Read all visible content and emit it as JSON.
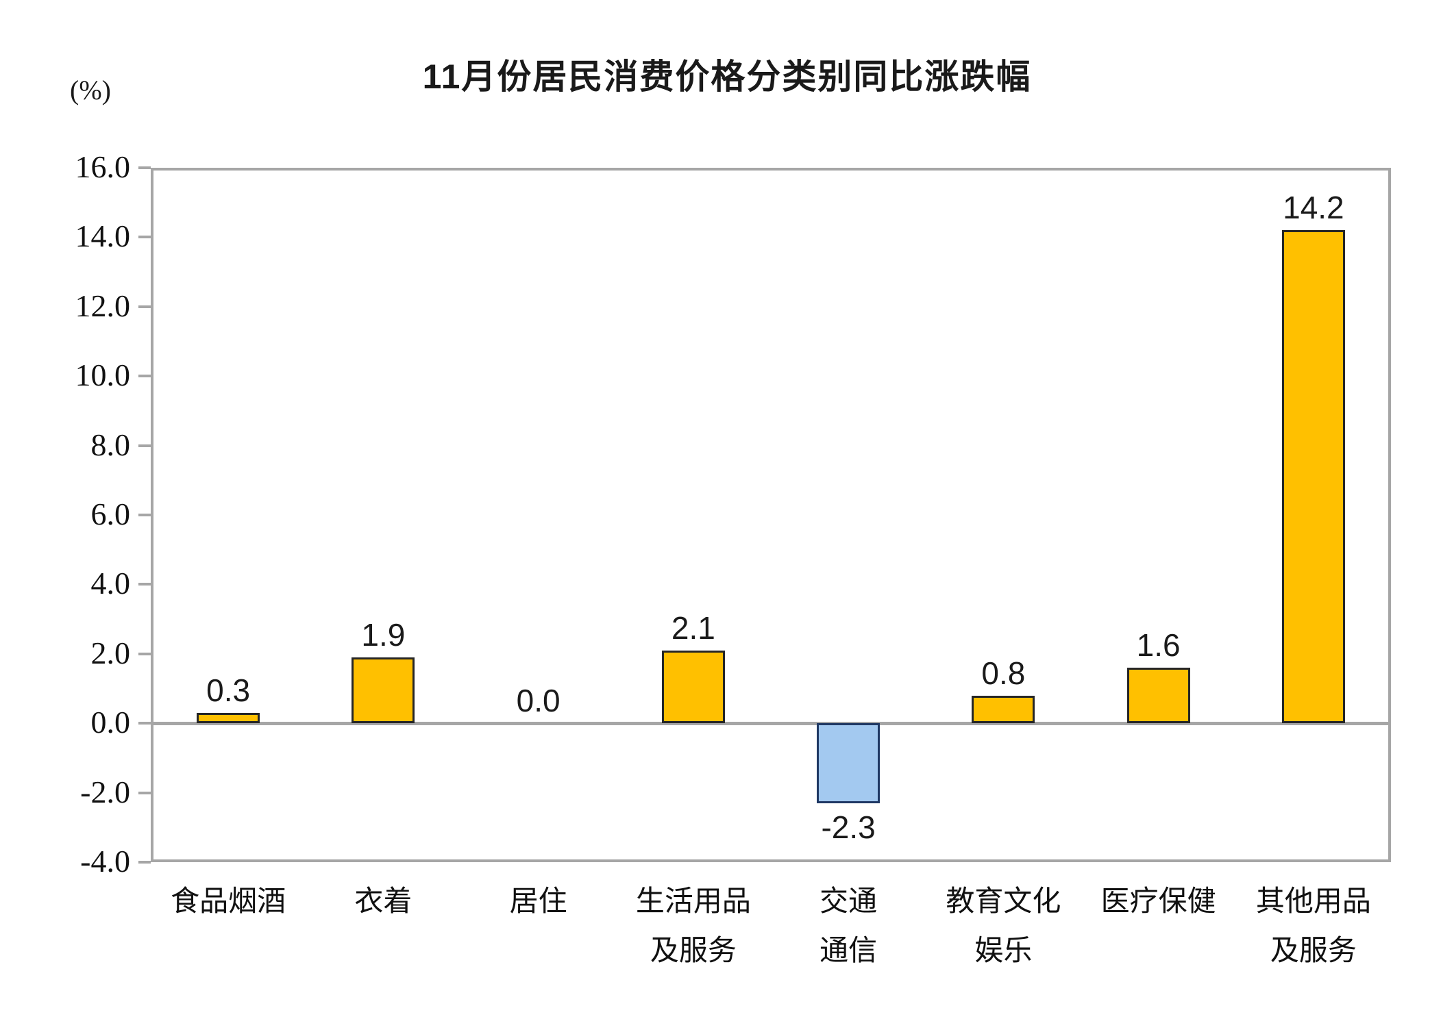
{
  "chart": {
    "title": "11月份居民消费价格分类别同比涨跌幅",
    "unit_label": "(%)"
  },
  "chart_data": {
    "type": "bar",
    "title": "11月份居民消费价格分类别同比涨跌幅",
    "xlabel": "",
    "ylabel": "(%)",
    "categories": [
      "食品烟酒",
      "衣着",
      "居住",
      "生活用品及服务",
      "交通通信",
      "教育文化娱乐",
      "医疗保健",
      "其他用品及服务"
    ],
    "category_lines": [
      [
        "食品烟酒"
      ],
      [
        "衣着"
      ],
      [
        "居住"
      ],
      [
        "生活用品",
        "及服务"
      ],
      [
        "交通",
        "通信"
      ],
      [
        "教育文化",
        "娱乐"
      ],
      [
        "医疗保健"
      ],
      [
        "其他用品",
        "及服务"
      ]
    ],
    "values": [
      0.3,
      1.9,
      0.0,
      2.1,
      -2.3,
      0.8,
      1.6,
      14.2
    ],
    "value_labels": [
      "0.3",
      "1.9",
      "0.0",
      "2.1",
      "-2.3",
      "0.8",
      "1.6",
      "14.2"
    ],
    "ylim": [
      -4.0,
      16.0
    ],
    "ytick_step": 2.0,
    "ytick_labels": [
      "16.0",
      "14.0",
      "12.0",
      "10.0",
      "8.0",
      "6.0",
      "4.0",
      "2.0",
      "0.0",
      "-2.0",
      "-4.0"
    ],
    "grid": false,
    "legend_position": "none",
    "colors": {
      "positive_fill": "#FFC000",
      "positive_border": "#262626",
      "negative_fill": "#A3C9F0",
      "negative_border": "#1F3864",
      "axis_frame": "#A6A6A6",
      "zero_line": "#A6A6A6",
      "text": "#1a1a1a"
    }
  }
}
